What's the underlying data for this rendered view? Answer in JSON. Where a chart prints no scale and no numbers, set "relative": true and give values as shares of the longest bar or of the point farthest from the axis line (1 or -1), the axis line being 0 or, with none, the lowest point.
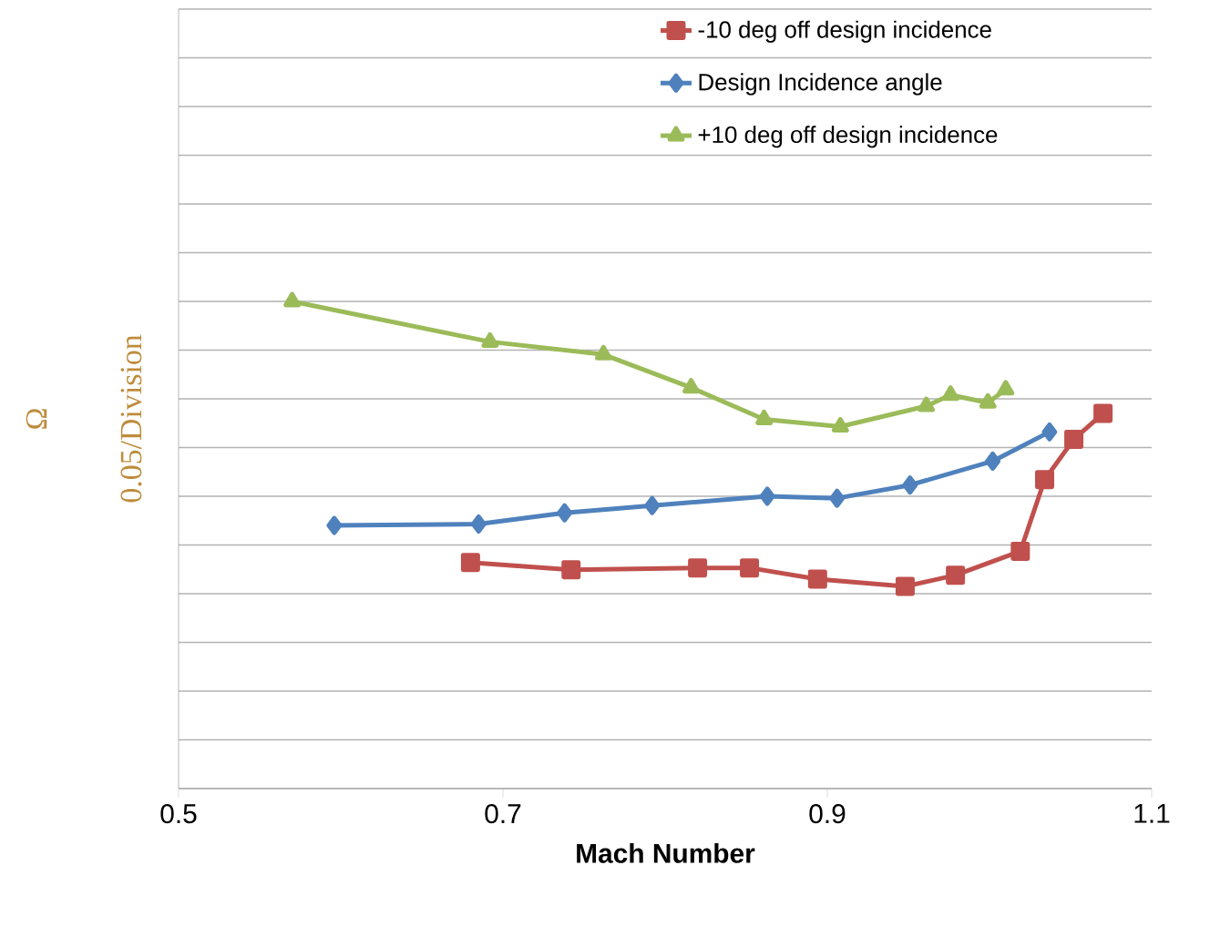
{
  "chart_data": {
    "type": "line",
    "xlabel": "Mach Number",
    "ylabel": "Ω",
    "annotations": [
      "0.05/Division"
    ],
    "relative": true,
    "grid": "y",
    "legend": "top right",
    "line_style": "solid",
    "xlim": [
      0.5,
      1.1
    ],
    "xticks": [
      0.5,
      0.7,
      0.9,
      1.1
    ],
    "series": [
      {
        "name": "-10 deg off design incidence",
        "color": "#c0504d",
        "marker": "square",
        "x": [
          0.68,
          0.742,
          0.82,
          0.852,
          0.894,
          0.948,
          0.979,
          1.019,
          1.034,
          1.052,
          1.07
        ],
        "values": [
          0.464,
          0.449,
          0.453,
          0.453,
          0.43,
          0.415,
          0.438,
          0.487,
          0.634,
          0.717,
          0.77
        ]
      },
      {
        "name": "Design Incidence angle",
        "color": "#4f81bd",
        "marker": "diamond",
        "x": [
          0.596,
          0.685,
          0.738,
          0.792,
          0.863,
          0.906,
          0.951,
          1.002,
          1.037
        ],
        "values": [
          0.54,
          0.543,
          0.566,
          0.581,
          0.6,
          0.596,
          0.623,
          0.672,
          0.732
        ]
      },
      {
        "name": "+10 deg off design incidence",
        "color": "#9bbb59",
        "marker": "triangle",
        "x": [
          0.57,
          0.692,
          0.762,
          0.816,
          0.861,
          0.908,
          0.961,
          0.976,
          0.999,
          1.01
        ],
        "values": [
          1,
          0.917,
          0.891,
          0.823,
          0.758,
          0.743,
          0.785,
          0.808,
          0.792,
          0.819
        ]
      }
    ]
  }
}
